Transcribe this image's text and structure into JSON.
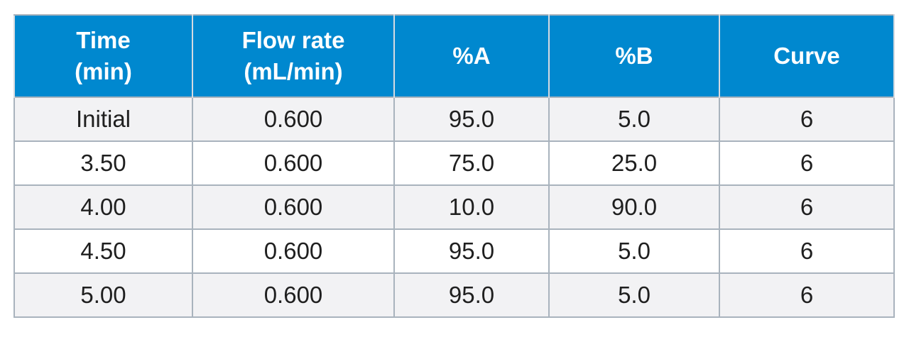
{
  "table": {
    "header": {
      "time": [
        "Time",
        "(min)"
      ],
      "flow": [
        "Flow rate",
        "(mL/min)"
      ],
      "pct_a": "%A",
      "pct_b": "%B",
      "curve": "Curve"
    },
    "rows": [
      {
        "time": "Initial",
        "flow": "0.600",
        "pct_a": "95.0",
        "pct_b": "5.0",
        "curve": "6"
      },
      {
        "time": "3.50",
        "flow": "0.600",
        "pct_a": "75.0",
        "pct_b": "25.0",
        "curve": "6"
      },
      {
        "time": "4.00",
        "flow": "0.600",
        "pct_a": "10.0",
        "pct_b": "90.0",
        "curve": "6"
      },
      {
        "time": "4.50",
        "flow": "0.600",
        "pct_a": "95.0",
        "pct_b": "5.0",
        "curve": "6"
      },
      {
        "time": "5.00",
        "flow": "0.600",
        "pct_a": "95.0",
        "pct_b": "5.0",
        "curve": "6"
      }
    ]
  },
  "colors": {
    "header_bg": "#0088cf",
    "header_text": "#ffffff",
    "row_shaded": "#f2f2f4",
    "row_plain": "#ffffff",
    "grid_line": "#a9b3bd"
  }
}
